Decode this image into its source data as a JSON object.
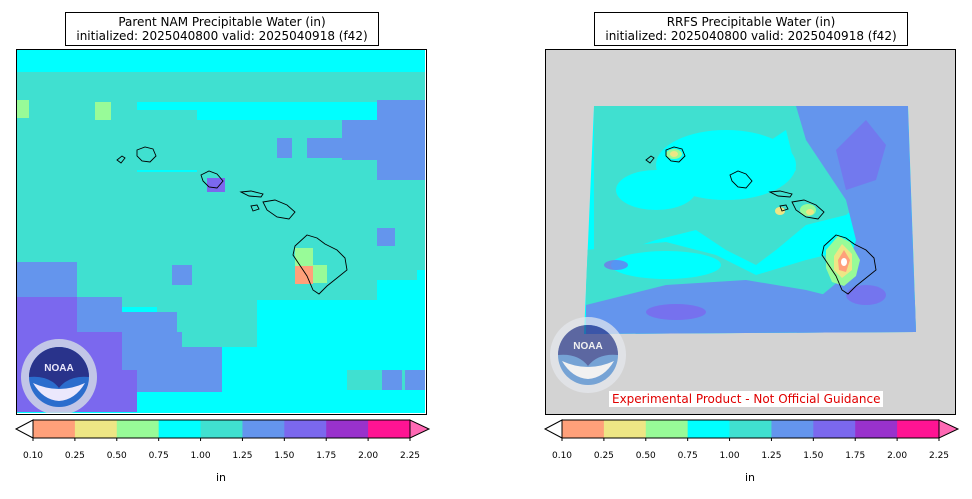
{
  "panels": [
    {
      "title_line1": "Parent NAM Precipitable Water (in)",
      "title_line2": "initialized: 2025040800 valid: 2025040918 (f42)"
    },
    {
      "title_line1": "RRFS Precipitable Water (in)",
      "title_line2": "initialized: 2025040800 valid: 2025040918 (f42)",
      "disclaimer": "Experimental Product - Not Official Guidance"
    }
  ],
  "colorbar": {
    "ticks": [
      "0.10",
      "0.25",
      "0.50",
      "0.75",
      "1.00",
      "1.25",
      "1.50",
      "1.75",
      "2.00",
      "2.25"
    ],
    "colors": [
      "#ffa07a",
      "#eee685",
      "#98fb98",
      "#00ffff",
      "#40e0d0",
      "#6495ed",
      "#7b68ee",
      "#9932cc",
      "#ff1493"
    ],
    "under_color": "#ffffff",
    "over_color": "#ff69b4",
    "unit": "in"
  },
  "logo": {
    "text": "NOAA",
    "name": "noaa-logo"
  },
  "land_color": "#d3d3d3"
}
